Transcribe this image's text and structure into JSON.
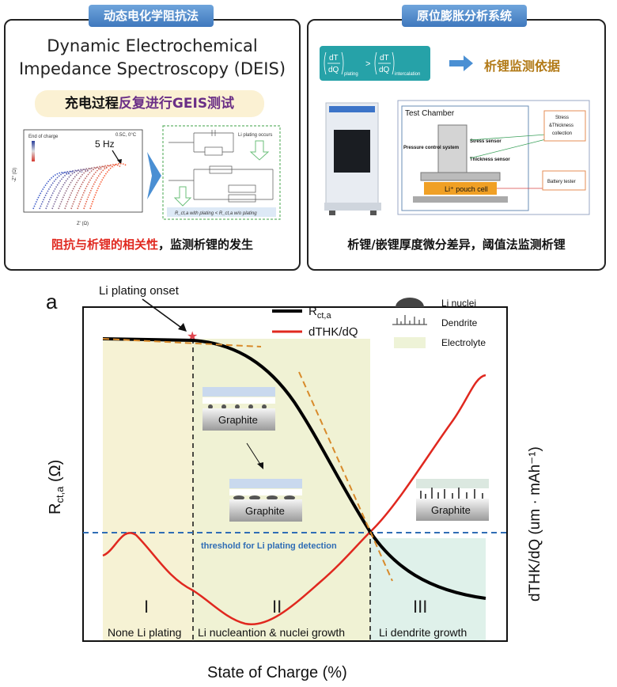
{
  "left_panel": {
    "tag": "动态电化学阻抗法",
    "title_line1": "Dynamic Electrochemical",
    "title_line2": "Impedance Spectroscopy (DEIS)",
    "banner_prefix": "充电过程",
    "banner_highlight": "反复进行GEIS测试",
    "caption_red": "阻抗与析锂的相关性",
    "caption_rest": "，监测析锂的发生",
    "nyquist": {
      "legend_title": "End of charge",
      "condition": "0.5C, 0°C",
      "freq_label": "5 Hz",
      "xlabel": "Z' (Ω)",
      "ylabel": "-Z'' (Ω)",
      "x_ticks": [
        "0",
        "0.01",
        "0.02",
        "0.03",
        "0.04",
        "0.05",
        "0.06"
      ],
      "y_ticks": [
        "0",
        "0.01",
        "0.02",
        "0.03",
        "0.04"
      ]
    },
    "circuit": {
      "label_plating": "Li plating occurs",
      "label_formula": "R_ct,a with plating < R_ct,a w/o plating"
    }
  },
  "right_panel": {
    "tag": "原位膨胀分析系统",
    "eq_left": "dT/dQ",
    "eq_left_sub": "plating",
    "eq_op": ">",
    "eq_right": "dT/dQ",
    "eq_right_sub": "intercalation",
    "conclusion": "析锂监测依据",
    "caption": "析锂/嵌锂厚度微分差异，阈值法监测析锂",
    "test_chamber": "Test Chamber",
    "pressure_label": "Pressure control system",
    "stress_label": "Stress sensor",
    "thickness_label": "Thickness sensor",
    "cell_label": "Li⁺ pouch cell",
    "box1_line1": "Stress",
    "box1_line2": "&Thickness",
    "box1_line3": "collection",
    "box2": "Battery tester"
  },
  "main_chart": {
    "panel_label": "a",
    "onset_label": "Li plating onset",
    "legend": {
      "rct_main": "R",
      "rct_sub": "ct,a",
      "dthk": "dTHK/dQ",
      "li_nuclei": "Li nuclei",
      "dendrite": "Dendrite",
      "electrolyte": "Electrolyte"
    },
    "ylabel_left_main": "R",
    "ylabel_left_sub": "ct,a",
    "ylabel_left_unit": " (Ω)",
    "ylabel_right": "dTHK/dQ (um · mAh⁻¹)",
    "xlabel": "State of Charge (%)",
    "threshold_label": "threshold for Li plating detection",
    "graphite": "Graphite",
    "regions": [
      {
        "numeral": "I",
        "label": "None Li plating"
      },
      {
        "numeral": "II",
        "label": "Li nucleantion & nuclei growth"
      },
      {
        "numeral": "III",
        "label": "Li dendrite growth"
      }
    ],
    "colors": {
      "rct": "#000000",
      "dthk": "#e0281f",
      "fit": "#d88a2a",
      "threshold": "#2f6db5",
      "region1": "#f5f1cf",
      "region2": "#eef1cf",
      "region3": "#dcefe8"
    }
  }
}
